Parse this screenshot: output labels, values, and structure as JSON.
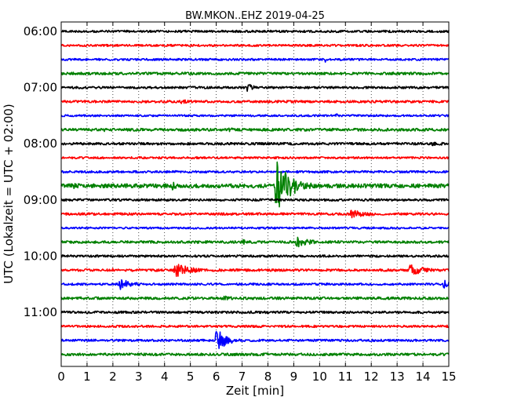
{
  "chart_data": {
    "type": "line",
    "title": "BW.MKON..EHZ 2019-04-25",
    "xlabel": "Zeit  [min]",
    "ylabel": "UTC (Lokalzeit = UTC + 02:00)",
    "xlim": [
      0,
      15
    ],
    "x_ticks": [
      "0",
      "1",
      "2",
      "3",
      "4",
      "5",
      "6",
      "7",
      "8",
      "9",
      "10",
      "11",
      "12",
      "13",
      "14",
      "15"
    ],
    "y_ticks": [
      "06:00",
      "07:00",
      "08:00",
      "09:00",
      "10:00",
      "11:00"
    ],
    "grid": "vertical dotted",
    "trace_interval_minutes": 15,
    "series": [
      {
        "start": "06:00",
        "color": "#000000",
        "noise": 1.4,
        "events": []
      },
      {
        "start": "06:15",
        "color": "#ff0000",
        "noise": 1.3,
        "events": []
      },
      {
        "start": "06:30",
        "color": "#0000ff",
        "noise": 1.3,
        "events": [
          {
            "t": 10.2,
            "amp": 4,
            "dur": 0.15
          }
        ]
      },
      {
        "start": "06:45",
        "color": "#008000",
        "noise": 1.6,
        "events": []
      },
      {
        "start": "07:00",
        "color": "#000000",
        "noise": 1.4,
        "events": [
          {
            "t": 7.2,
            "amp": 6,
            "dur": 0.3
          }
        ]
      },
      {
        "start": "07:15",
        "color": "#ff0000",
        "noise": 1.5,
        "events": [
          {
            "t": 4.5,
            "amp": 3,
            "dur": 1.0
          }
        ]
      },
      {
        "start": "07:30",
        "color": "#0000ff",
        "noise": 1.2,
        "events": [
          {
            "t": 10.6,
            "amp": 4,
            "dur": 0.15
          }
        ]
      },
      {
        "start": "07:45",
        "color": "#008000",
        "noise": 1.7,
        "events": [
          {
            "t": 1.5,
            "amp": 3,
            "dur": 0.6
          },
          {
            "t": 6.5,
            "amp": 3,
            "dur": 0.6
          }
        ]
      },
      {
        "start": "08:00",
        "color": "#000000",
        "noise": 1.5,
        "events": [
          {
            "t": 14.3,
            "amp": 3,
            "dur": 0.8
          }
        ]
      },
      {
        "start": "08:15",
        "color": "#ff0000",
        "noise": 1.3,
        "events": []
      },
      {
        "start": "08:30",
        "color": "#0000ff",
        "noise": 1.4,
        "events": []
      },
      {
        "start": "08:45",
        "color": "#008000",
        "noise": 2.5,
        "events": [
          {
            "t": 0.4,
            "amp": 4,
            "dur": 1.2
          },
          {
            "t": 4.3,
            "amp": 6,
            "dur": 0.2
          },
          {
            "t": 8.3,
            "amp": 34,
            "dur": 0.6
          }
        ]
      },
      {
        "start": "09:00",
        "color": "#000000",
        "noise": 1.4,
        "events": []
      },
      {
        "start": "09:15",
        "color": "#ff0000",
        "noise": 1.5,
        "events": [
          {
            "t": 11.2,
            "amp": 6,
            "dur": 0.8
          }
        ]
      },
      {
        "start": "09:30",
        "color": "#0000ff",
        "noise": 1.2,
        "events": []
      },
      {
        "start": "09:45",
        "color": "#008000",
        "noise": 1.6,
        "events": [
          {
            "t": 7.0,
            "amp": 4,
            "dur": 0.25
          },
          {
            "t": 9.1,
            "amp": 7,
            "dur": 0.6
          }
        ]
      },
      {
        "start": "10:00",
        "color": "#000000",
        "noise": 1.4,
        "events": []
      },
      {
        "start": "10:15",
        "color": "#ff0000",
        "noise": 1.5,
        "events": [
          {
            "t": 2.0,
            "amp": 3,
            "dur": 0.2
          },
          {
            "t": 4.4,
            "amp": 10,
            "dur": 0.6
          },
          {
            "t": 13.5,
            "amp": 8,
            "dur": 0.6
          }
        ]
      },
      {
        "start": "10:30",
        "color": "#0000ff",
        "noise": 1.3,
        "events": [
          {
            "t": 2.2,
            "amp": 9,
            "dur": 0.5
          },
          {
            "t": 14.8,
            "amp": 6,
            "dur": 0.3
          }
        ]
      },
      {
        "start": "10:45",
        "color": "#008000",
        "noise": 1.6,
        "events": [
          {
            "t": 6.3,
            "amp": 4,
            "dur": 0.4
          }
        ]
      },
      {
        "start": "11:00",
        "color": "#000000",
        "noise": 1.5,
        "events": []
      },
      {
        "start": "11:15",
        "color": "#ff0000",
        "noise": 1.4,
        "events": []
      },
      {
        "start": "11:30",
        "color": "#0000ff",
        "noise": 1.4,
        "events": [
          {
            "t": 6.0,
            "amp": 16,
            "dur": 0.4
          }
        ]
      },
      {
        "start": "11:45",
        "color": "#008000",
        "noise": 1.6,
        "events": []
      }
    ]
  }
}
